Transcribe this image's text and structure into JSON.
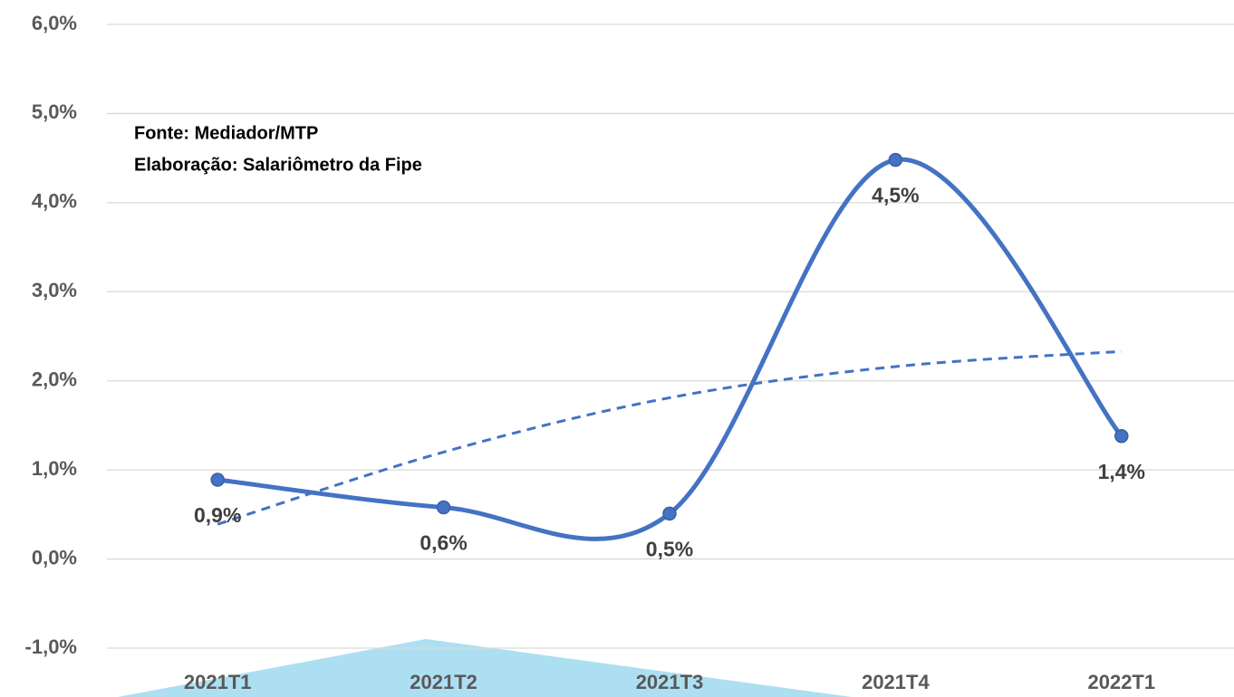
{
  "chart_data": {
    "type": "line",
    "annotations": [
      "Fonte: Mediador/MTP",
      "Elaboração: Salariômetro da Fipe"
    ],
    "categories": [
      "2021T1",
      "2021T2",
      "2021T3",
      "2021T4",
      "2022T1"
    ],
    "series": [
      {
        "color": "#4472c4",
        "values": [
          0.89,
          0.58,
          0.51,
          4.48,
          1.38
        ],
        "value_labels": [
          "0,9%",
          "0,6%",
          "0,5%",
          "4,5%",
          "1,4%"
        ]
      }
    ],
    "trendline": {
      "color": "#4472c4",
      "dashed": true,
      "values": [
        0.39,
        1.2,
        1.81,
        2.16,
        2.33
      ]
    },
    "ylim": [
      -1,
      6
    ],
    "yticks": [
      {
        "value": -1,
        "label": "-1,0%"
      },
      {
        "value": 0,
        "label": "0,0%"
      },
      {
        "value": 1,
        "label": "1,0%"
      },
      {
        "value": 2,
        "label": "2,0%"
      },
      {
        "value": 3,
        "label": "3,0%"
      },
      {
        "value": 4,
        "label": "4,0%"
      },
      {
        "value": 5,
        "label": "5,0%"
      },
      {
        "value": 6,
        "label": "6,0%"
      }
    ],
    "grid": true
  }
}
